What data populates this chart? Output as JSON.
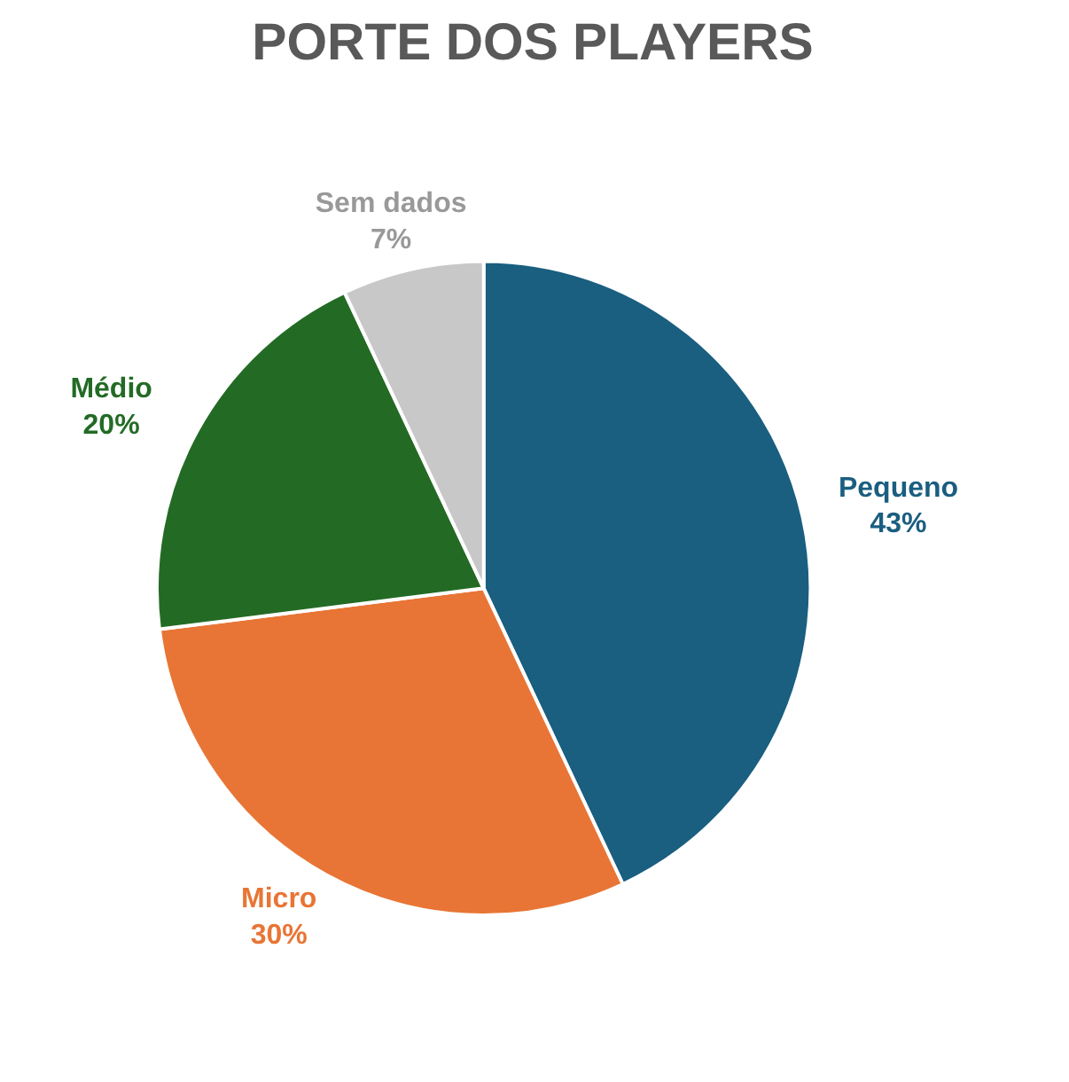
{
  "chart_data": {
    "type": "pie",
    "title": "PORTE DOS PLAYERS",
    "categories": [
      "Pequeno",
      "Micro",
      "Médio",
      "Sem dados"
    ],
    "values": [
      43,
      30,
      20,
      7
    ],
    "colors": [
      "#1a5e80",
      "#e87535",
      "#236b25",
      "#c8c8c8"
    ],
    "value_labels": [
      "43%",
      "30%",
      "20%",
      "7%"
    ]
  }
}
